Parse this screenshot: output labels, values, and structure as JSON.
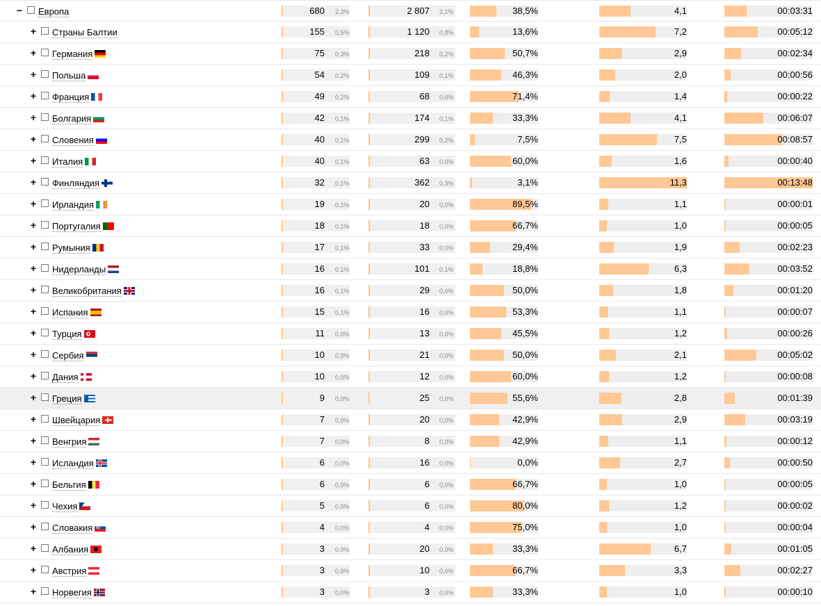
{
  "colors": {
    "bar_fill": "#ffc894",
    "bar_track": "#eeeeee",
    "accent_edge": "#ffc58a"
  },
  "icons": {
    "expand": "+",
    "collapse": "−"
  },
  "rows": [
    {
      "name": "Европа",
      "flag": "",
      "level": 0,
      "visits": "680",
      "visits_pct": "2,3%",
      "views": "2 807",
      "views_pct": "2,1%",
      "bounce": "38,5%",
      "bounce_frac": 0.385,
      "depth": "4,1",
      "depth_frac": 0.36,
      "time": "00:03:31",
      "time_frac": 0.25
    },
    {
      "name": "Страны Балтии",
      "flag": "",
      "level": 1,
      "visits": "155",
      "visits_pct": "0,5%",
      "views": "1 120",
      "views_pct": "0,8%",
      "bounce": "13,6%",
      "bounce_frac": 0.136,
      "depth": "7,2",
      "depth_frac": 0.64,
      "time": "00:05:12",
      "time_frac": 0.38
    },
    {
      "name": "Германия",
      "flag": "de",
      "level": 1,
      "visits": "75",
      "visits_pct": "0,3%",
      "views": "218",
      "views_pct": "0,2%",
      "bounce": "50,7%",
      "bounce_frac": 0.507,
      "depth": "2,9",
      "depth_frac": 0.26,
      "time": "00:02:34",
      "time_frac": 0.19
    },
    {
      "name": "Польша",
      "flag": "pl",
      "level": 1,
      "visits": "54",
      "visits_pct": "0,2%",
      "views": "109",
      "views_pct": "0,1%",
      "bounce": "46,3%",
      "bounce_frac": 0.463,
      "depth": "2,0",
      "depth_frac": 0.18,
      "time": "00:00:56",
      "time_frac": 0.07
    },
    {
      "name": "Франция",
      "flag": "fr",
      "level": 1,
      "visits": "49",
      "visits_pct": "0,2%",
      "views": "68",
      "views_pct": "0,0%",
      "bounce": "71,4%",
      "bounce_frac": 0.714,
      "depth": "1,4",
      "depth_frac": 0.12,
      "time": "00:00:22",
      "time_frac": 0.03
    },
    {
      "name": "Болгария",
      "flag": "bg",
      "level": 1,
      "visits": "42",
      "visits_pct": "0,1%",
      "views": "174",
      "views_pct": "0,1%",
      "bounce": "33,3%",
      "bounce_frac": 0.333,
      "depth": "4,1",
      "depth_frac": 0.36,
      "time": "00:06:07",
      "time_frac": 0.44
    },
    {
      "name": "Словения",
      "flag": "si",
      "level": 1,
      "visits": "40",
      "visits_pct": "0,1%",
      "views": "299",
      "views_pct": "0,2%",
      "bounce": "7,5%",
      "bounce_frac": 0.075,
      "depth": "7,5",
      "depth_frac": 0.66,
      "time": "00:08:57",
      "time_frac": 0.65
    },
    {
      "name": "Италия",
      "flag": "it",
      "level": 1,
      "visits": "40",
      "visits_pct": "0,1%",
      "views": "63",
      "views_pct": "0,0%",
      "bounce": "60,0%",
      "bounce_frac": 0.6,
      "depth": "1,6",
      "depth_frac": 0.14,
      "time": "00:00:40",
      "time_frac": 0.05
    },
    {
      "name": "Финляндия",
      "flag": "fi",
      "level": 1,
      "visits": "32",
      "visits_pct": "0,1%",
      "views": "362",
      "views_pct": "0,3%",
      "bounce": "3,1%",
      "bounce_frac": 0.031,
      "depth": "11,3",
      "depth_frac": 1.0,
      "time": "00:13:48",
      "time_frac": 1.0
    },
    {
      "name": "Ирландия",
      "flag": "ie",
      "level": 1,
      "visits": "19",
      "visits_pct": "0,1%",
      "views": "20",
      "views_pct": "0,0%",
      "bounce": "89,5%",
      "bounce_frac": 0.895,
      "depth": "1,1",
      "depth_frac": 0.1,
      "time": "00:00:01",
      "time_frac": 0.01
    },
    {
      "name": "Португалия",
      "flag": "pt",
      "level": 1,
      "visits": "18",
      "visits_pct": "0,1%",
      "views": "18",
      "views_pct": "0,0%",
      "bounce": "66,7%",
      "bounce_frac": 0.667,
      "depth": "1,0",
      "depth_frac": 0.09,
      "time": "00:00:05",
      "time_frac": 0.01
    },
    {
      "name": "Румыния",
      "flag": "ro",
      "level": 1,
      "visits": "17",
      "visits_pct": "0,1%",
      "views": "33",
      "views_pct": "0,0%",
      "bounce": "29,4%",
      "bounce_frac": 0.294,
      "depth": "1,9",
      "depth_frac": 0.17,
      "time": "00:02:23",
      "time_frac": 0.17
    },
    {
      "name": "Нидерланды",
      "flag": "nl",
      "level": 1,
      "visits": "16",
      "visits_pct": "0,1%",
      "views": "101",
      "views_pct": "0,1%",
      "bounce": "18,8%",
      "bounce_frac": 0.188,
      "depth": "6,3",
      "depth_frac": 0.56,
      "time": "00:03:52",
      "time_frac": 0.28
    },
    {
      "name": "Великобритания",
      "flag": "gb",
      "level": 1,
      "visits": "16",
      "visits_pct": "0,1%",
      "views": "29",
      "views_pct": "0,0%",
      "bounce": "50,0%",
      "bounce_frac": 0.5,
      "depth": "1,8",
      "depth_frac": 0.16,
      "time": "00:01:20",
      "time_frac": 0.1
    },
    {
      "name": "Испания",
      "flag": "es",
      "level": 1,
      "visits": "15",
      "visits_pct": "0,1%",
      "views": "16",
      "views_pct": "0,0%",
      "bounce": "53,3%",
      "bounce_frac": 0.533,
      "depth": "1,1",
      "depth_frac": 0.1,
      "time": "00:00:07",
      "time_frac": 0.01
    },
    {
      "name": "Турция",
      "flag": "tr",
      "level": 1,
      "visits": "11",
      "visits_pct": "0,0%",
      "views": "13",
      "views_pct": "0,0%",
      "bounce": "45,5%",
      "bounce_frac": 0.455,
      "depth": "1,2",
      "depth_frac": 0.11,
      "time": "00:00:26",
      "time_frac": 0.03
    },
    {
      "name": "Сербия",
      "flag": "rs",
      "level": 1,
      "visits": "10",
      "visits_pct": "0,0%",
      "views": "21",
      "views_pct": "0,0%",
      "bounce": "50,0%",
      "bounce_frac": 0.5,
      "depth": "2,1",
      "depth_frac": 0.19,
      "time": "00:05:02",
      "time_frac": 0.36
    },
    {
      "name": "Дания",
      "flag": "dk",
      "level": 1,
      "visits": "10",
      "visits_pct": "0,0%",
      "views": "12",
      "views_pct": "0,0%",
      "bounce": "60,0%",
      "bounce_frac": 0.6,
      "depth": "1,2",
      "depth_frac": 0.11,
      "time": "00:00:08",
      "time_frac": 0.01
    },
    {
      "name": "Греция",
      "flag": "gr",
      "level": 1,
      "highlight": true,
      "visits": "9",
      "visits_pct": "0,0%",
      "views": "25",
      "views_pct": "0,0%",
      "bounce": "55,6%",
      "bounce_frac": 0.556,
      "depth": "2,8",
      "depth_frac": 0.25,
      "time": "00:01:39",
      "time_frac": 0.12
    },
    {
      "name": "Швейцария",
      "flag": "ch",
      "level": 1,
      "visits": "7",
      "visits_pct": "0,0%",
      "views": "20",
      "views_pct": "0,0%",
      "bounce": "42,9%",
      "bounce_frac": 0.429,
      "depth": "2,9",
      "depth_frac": 0.26,
      "time": "00:03:19",
      "time_frac": 0.24
    },
    {
      "name": "Венгрия",
      "flag": "hu",
      "level": 1,
      "visits": "7",
      "visits_pct": "0,0%",
      "views": "8",
      "views_pct": "0,0%",
      "bounce": "42,9%",
      "bounce_frac": 0.429,
      "depth": "1,1",
      "depth_frac": 0.1,
      "time": "00:00:12",
      "time_frac": 0.02
    },
    {
      "name": "Исландия",
      "flag": "is",
      "level": 1,
      "visits": "6",
      "visits_pct": "0,0%",
      "views": "16",
      "views_pct": "0,0%",
      "bounce": "0,0%",
      "bounce_frac": 0.0,
      "depth": "2,7",
      "depth_frac": 0.24,
      "time": "00:00:50",
      "time_frac": 0.06
    },
    {
      "name": "Бельгия",
      "flag": "be",
      "level": 1,
      "visits": "6",
      "visits_pct": "0,0%",
      "views": "6",
      "views_pct": "0,0%",
      "bounce": "66,7%",
      "bounce_frac": 0.667,
      "depth": "1,0",
      "depth_frac": 0.09,
      "time": "00:00:05",
      "time_frac": 0.01
    },
    {
      "name": "Чехия",
      "flag": "cz",
      "level": 1,
      "visits": "5",
      "visits_pct": "0,0%",
      "views": "6",
      "views_pct": "0,0%",
      "bounce": "80,0%",
      "bounce_frac": 0.8,
      "depth": "1,2",
      "depth_frac": 0.11,
      "time": "00:00:02",
      "time_frac": 0.01
    },
    {
      "name": "Словакия",
      "flag": "sk",
      "level": 1,
      "visits": "4",
      "visits_pct": "0,0%",
      "views": "4",
      "views_pct": "0,0%",
      "bounce": "75,0%",
      "bounce_frac": 0.75,
      "depth": "1,0",
      "depth_frac": 0.09,
      "time": "00:00:04",
      "time_frac": 0.01
    },
    {
      "name": "Албания",
      "flag": "al",
      "level": 1,
      "visits": "3",
      "visits_pct": "0,0%",
      "views": "20",
      "views_pct": "0,0%",
      "bounce": "33,3%",
      "bounce_frac": 0.333,
      "depth": "6,7",
      "depth_frac": 0.59,
      "time": "00:01:05",
      "time_frac": 0.08
    },
    {
      "name": "Австрия",
      "flag": "at",
      "level": 1,
      "visits": "3",
      "visits_pct": "0,0%",
      "views": "10",
      "views_pct": "0,0%",
      "bounce": "66,7%",
      "bounce_frac": 0.667,
      "depth": "3,3",
      "depth_frac": 0.29,
      "time": "00:02:27",
      "time_frac": 0.18
    },
    {
      "name": "Норвегия",
      "flag": "no",
      "level": 1,
      "visits": "3",
      "visits_pct": "0,0%",
      "views": "3",
      "views_pct": "0,0%",
      "bounce": "33,3%",
      "bounce_frac": 0.333,
      "depth": "1,0",
      "depth_frac": 0.09,
      "time": "00:00:10",
      "time_frac": 0.01
    }
  ]
}
